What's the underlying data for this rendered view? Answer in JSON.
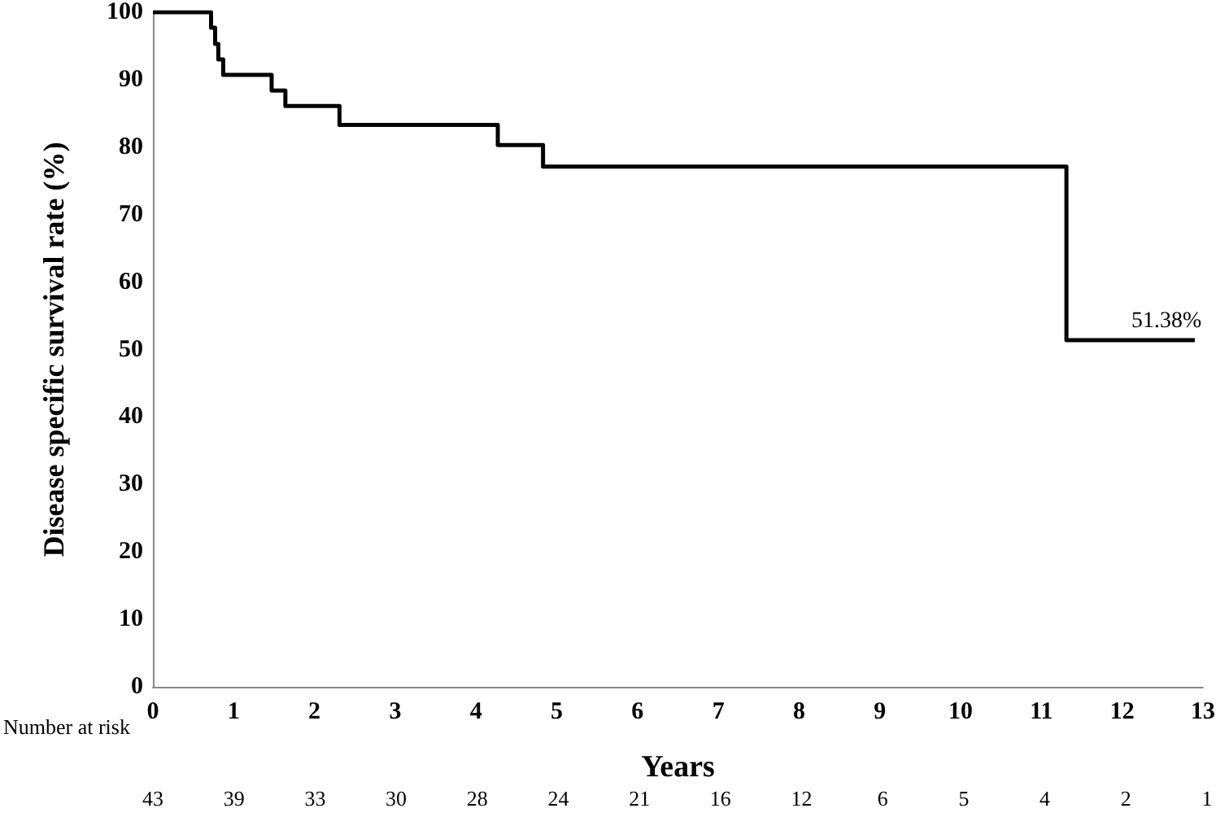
{
  "chart_data": {
    "type": "step",
    "xlabel": "Years",
    "ylabel": "Disease specific survival rate (%)",
    "x": [
      0,
      0.72,
      0.77,
      0.81,
      0.87,
      1.47,
      1.64,
      2.31,
      4.27,
      4.83,
      11.31,
      12.9
    ],
    "series": [
      {
        "color": "#000000",
        "values": [
          100,
          97.7,
          95.3,
          93.0,
          90.7,
          88.4,
          86.1,
          83.3,
          80.3,
          77.1,
          51.38,
          51.38
        ]
      }
    ],
    "xlim": [
      0,
      13
    ],
    "xticks": [
      0,
      1,
      2,
      3,
      4,
      5,
      6,
      7,
      8,
      9,
      10,
      11,
      12,
      13
    ],
    "ylim": [
      0,
      100
    ],
    "yticks": [
      0,
      10,
      20,
      30,
      40,
      50,
      60,
      70,
      80,
      90,
      100
    ],
    "grid": false,
    "marker": "none",
    "line_style": "solid",
    "annotations": [
      {
        "text": "51.38%",
        "x": 12.5,
        "y": 51.38
      },
      "Number at risk",
      "43",
      "39",
      "33",
      "30",
      "28",
      "24",
      "21",
      "16",
      "12",
      "6",
      "5",
      "4",
      "2",
      "1"
    ]
  }
}
